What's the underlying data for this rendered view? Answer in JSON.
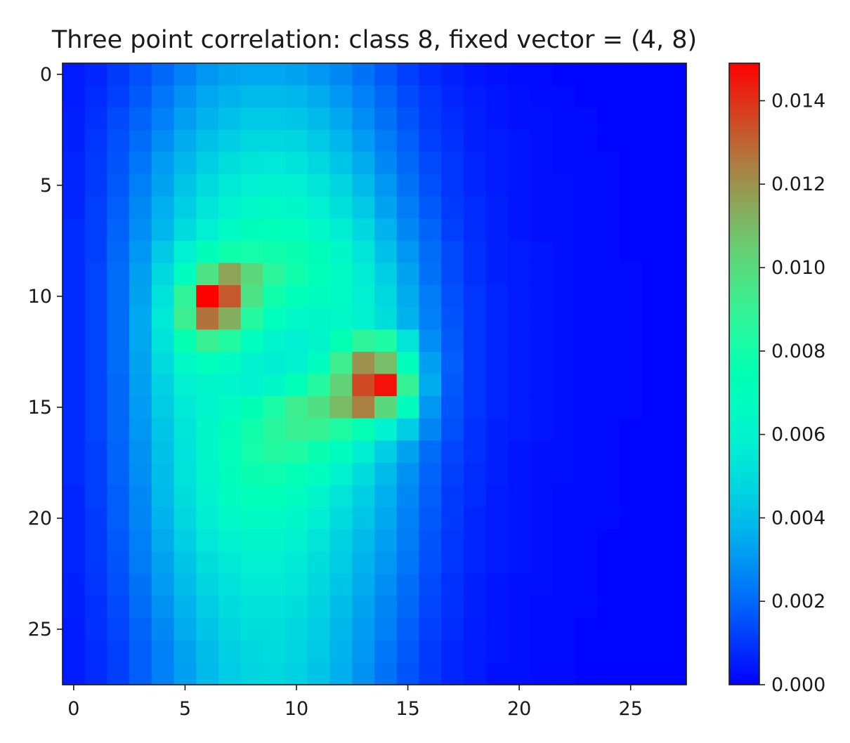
{
  "chart_data": {
    "type": "heatmap",
    "title": "Three point correlation: class 8, fixed vector = (4, 8)",
    "xlabel": "",
    "ylabel": "",
    "colormap": "rainbow",
    "grid_size": [
      28,
      28
    ],
    "x_range": [
      -0.5,
      27.5
    ],
    "y_range": [
      27.5,
      -0.5
    ],
    "x_ticks": [
      "0",
      "5",
      "10",
      "15",
      "20",
      "25"
    ],
    "y_ticks": [
      "0",
      "5",
      "10",
      "15",
      "20",
      "25"
    ],
    "colorbar": {
      "range": [
        0.0,
        0.0149
      ],
      "ticks": [
        "0.000",
        "0.002",
        "0.004",
        "0.006",
        "0.008",
        "0.010",
        "0.012",
        "0.014"
      ]
    },
    "values": [
      [
        0.0005,
        0.0007,
        0.0011,
        0.0015,
        0.002,
        0.0025,
        0.003,
        0.0033,
        0.0034,
        0.0034,
        0.0033,
        0.003,
        0.0027,
        0.0022,
        0.0017,
        0.0012,
        0.0008,
        0.0006,
        0.0004,
        0.0003,
        0.0002,
        0.0002,
        0.0001,
        0.0001,
        0.0001,
        0.0001,
        0.0001,
        0.0001
      ],
      [
        0.0005,
        0.0008,
        0.0012,
        0.0017,
        0.0023,
        0.0029,
        0.0034,
        0.0037,
        0.0039,
        0.0039,
        0.0038,
        0.0035,
        0.003,
        0.0025,
        0.002,
        0.0014,
        0.001,
        0.0007,
        0.0005,
        0.0004,
        0.0003,
        0.0002,
        0.0002,
        0.0001,
        0.0001,
        0.0001,
        0.0001,
        0.0001
      ],
      [
        0.0006,
        0.0009,
        0.0014,
        0.0019,
        0.0025,
        0.0032,
        0.0037,
        0.0041,
        0.0043,
        0.0043,
        0.0042,
        0.0039,
        0.0034,
        0.0028,
        0.0022,
        0.0016,
        0.0011,
        0.0008,
        0.0006,
        0.0004,
        0.0003,
        0.0003,
        0.0002,
        0.0002,
        0.0001,
        0.0001,
        0.0001,
        0.0001
      ],
      [
        0.0006,
        0.001,
        0.0015,
        0.0021,
        0.0028,
        0.0035,
        0.0041,
        0.0045,
        0.0048,
        0.0048,
        0.0047,
        0.0043,
        0.0038,
        0.0031,
        0.0024,
        0.0018,
        0.0012,
        0.0009,
        0.0006,
        0.0005,
        0.0004,
        0.0003,
        0.0002,
        0.0002,
        0.0001,
        0.0001,
        0.0001,
        0.0001
      ],
      [
        0.0007,
        0.0011,
        0.0016,
        0.0023,
        0.0031,
        0.0038,
        0.0045,
        0.005,
        0.0053,
        0.0054,
        0.0052,
        0.0048,
        0.0042,
        0.0035,
        0.0027,
        0.002,
        0.0014,
        0.001,
        0.0007,
        0.0005,
        0.0004,
        0.0003,
        0.0002,
        0.0002,
        0.0002,
        0.0001,
        0.0001,
        0.0001
      ],
      [
        0.0007,
        0.0011,
        0.0017,
        0.0025,
        0.0033,
        0.0042,
        0.0049,
        0.0055,
        0.0058,
        0.0059,
        0.0058,
        0.0053,
        0.0047,
        0.0039,
        0.003,
        0.0022,
        0.0015,
        0.001,
        0.0007,
        0.0005,
        0.0004,
        0.0003,
        0.0003,
        0.0002,
        0.0002,
        0.0001,
        0.0001,
        0.0001
      ],
      [
        0.0007,
        0.0012,
        0.0018,
        0.0027,
        0.0036,
        0.0045,
        0.0053,
        0.006,
        0.0064,
        0.0065,
        0.0063,
        0.0058,
        0.0051,
        0.0043,
        0.0033,
        0.0024,
        0.0017,
        0.0011,
        0.0008,
        0.0006,
        0.0004,
        0.0003,
        0.0003,
        0.0002,
        0.0002,
        0.0001,
        0.0001,
        0.0001
      ],
      [
        0.0008,
        0.0012,
        0.0019,
        0.0028,
        0.0038,
        0.0049,
        0.0058,
        0.0066,
        0.0071,
        0.0072,
        0.007,
        0.0064,
        0.0057,
        0.0048,
        0.0037,
        0.0027,
        0.0019,
        0.0012,
        0.0008,
        0.0006,
        0.0004,
        0.0003,
        0.0003,
        0.0002,
        0.0002,
        0.0001,
        0.0001,
        0.0001
      ],
      [
        0.0008,
        0.0012,
        0.002,
        0.003,
        0.0043,
        0.0058,
        0.0071,
        0.0079,
        0.008,
        0.0079,
        0.0077,
        0.0071,
        0.0063,
        0.0053,
        0.0041,
        0.003,
        0.0021,
        0.0014,
        0.0009,
        0.0006,
        0.0005,
        0.0004,
        0.0003,
        0.0002,
        0.0002,
        0.0001,
        0.0001,
        0.0001
      ],
      [
        0.0008,
        0.0013,
        0.0021,
        0.0032,
        0.0048,
        0.0068,
        0.0097,
        0.0116,
        0.0101,
        0.0087,
        0.0079,
        0.0073,
        0.0066,
        0.0056,
        0.0045,
        0.0033,
        0.0022,
        0.0014,
        0.0009,
        0.0006,
        0.0005,
        0.0004,
        0.0003,
        0.0002,
        0.0002,
        0.0002,
        0.0001,
        0.0001
      ],
      [
        0.0008,
        0.0013,
        0.0021,
        0.0033,
        0.0052,
        0.0088,
        0.0149,
        0.0132,
        0.0097,
        0.0079,
        0.0072,
        0.0068,
        0.0065,
        0.0058,
        0.0048,
        0.0035,
        0.0024,
        0.0015,
        0.001,
        0.0007,
        0.0005,
        0.0004,
        0.0003,
        0.0002,
        0.0002,
        0.0002,
        0.0001,
        0.0001
      ],
      [
        0.0008,
        0.0013,
        0.0021,
        0.0034,
        0.0054,
        0.0092,
        0.0127,
        0.0113,
        0.0085,
        0.007,
        0.0064,
        0.0063,
        0.0064,
        0.006,
        0.005,
        0.0037,
        0.0025,
        0.0016,
        0.001,
        0.0007,
        0.0005,
        0.0004,
        0.0003,
        0.0002,
        0.0002,
        0.0002,
        0.0001,
        0.0001
      ],
      [
        0.0008,
        0.0013,
        0.0021,
        0.0034,
        0.0052,
        0.0076,
        0.0091,
        0.0084,
        0.007,
        0.0061,
        0.0058,
        0.0062,
        0.0075,
        0.0088,
        0.0083,
        0.0053,
        0.0028,
        0.0017,
        0.001,
        0.0007,
        0.0005,
        0.0004,
        0.0003,
        0.0002,
        0.0002,
        0.0002,
        0.0001,
        0.0001
      ],
      [
        0.0008,
        0.0013,
        0.0021,
        0.0033,
        0.0049,
        0.0064,
        0.007,
        0.0067,
        0.006,
        0.0057,
        0.0059,
        0.0068,
        0.0093,
        0.012,
        0.0109,
        0.0071,
        0.0032,
        0.0018,
        0.001,
        0.0007,
        0.0005,
        0.0004,
        0.0003,
        0.0002,
        0.0002,
        0.0002,
        0.0001,
        0.0001
      ],
      [
        0.0008,
        0.0013,
        0.002,
        0.0032,
        0.0046,
        0.0058,
        0.0062,
        0.0061,
        0.006,
        0.0063,
        0.0073,
        0.0085,
        0.0103,
        0.0135,
        0.0146,
        0.009,
        0.0035,
        0.0017,
        0.001,
        0.0007,
        0.0005,
        0.0004,
        0.0003,
        0.0002,
        0.0002,
        0.0002,
        0.0001,
        0.0001
      ],
      [
        0.0008,
        0.0013,
        0.002,
        0.0031,
        0.0044,
        0.0055,
        0.0061,
        0.0067,
        0.0074,
        0.0082,
        0.0092,
        0.0098,
        0.011,
        0.0124,
        0.0101,
        0.0069,
        0.003,
        0.0016,
        0.001,
        0.0007,
        0.0005,
        0.0004,
        0.0003,
        0.0002,
        0.0002,
        0.0002,
        0.0001,
        0.0001
      ],
      [
        0.0008,
        0.0013,
        0.002,
        0.003,
        0.0042,
        0.0053,
        0.0063,
        0.0071,
        0.0079,
        0.0086,
        0.0091,
        0.009,
        0.0083,
        0.0075,
        0.006,
        0.0044,
        0.0026,
        0.0015,
        0.0009,
        0.0006,
        0.0005,
        0.0004,
        0.0003,
        0.0002,
        0.0002,
        0.0001,
        0.0001,
        0.0001
      ],
      [
        0.0008,
        0.0012,
        0.0019,
        0.0029,
        0.0041,
        0.0052,
        0.0063,
        0.0072,
        0.008,
        0.0084,
        0.0083,
        0.0077,
        0.0068,
        0.0057,
        0.0045,
        0.0033,
        0.0021,
        0.0013,
        0.0009,
        0.0006,
        0.0004,
        0.0003,
        0.0003,
        0.0002,
        0.0002,
        0.0001,
        0.0001,
        0.0001
      ],
      [
        0.0008,
        0.0012,
        0.0019,
        0.0028,
        0.004,
        0.0052,
        0.0062,
        0.0071,
        0.0077,
        0.0078,
        0.0075,
        0.0068,
        0.0059,
        0.0049,
        0.0039,
        0.0029,
        0.0019,
        0.0012,
        0.0008,
        0.0006,
        0.0004,
        0.0003,
        0.0003,
        0.0002,
        0.0002,
        0.0001,
        0.0001,
        0.0001
      ],
      [
        0.0007,
        0.0012,
        0.0018,
        0.0027,
        0.0039,
        0.005,
        0.006,
        0.0068,
        0.0072,
        0.0072,
        0.0068,
        0.0062,
        0.0053,
        0.0045,
        0.0036,
        0.0027,
        0.0018,
        0.0011,
        0.0008,
        0.0005,
        0.0004,
        0.0003,
        0.0002,
        0.0002,
        0.0002,
        0.0001,
        0.0001,
        0.0001
      ],
      [
        0.0007,
        0.0011,
        0.0018,
        0.0026,
        0.0037,
        0.0048,
        0.0057,
        0.0064,
        0.0067,
        0.0066,
        0.0063,
        0.0057,
        0.0049,
        0.0042,
        0.0034,
        0.0025,
        0.0017,
        0.0011,
        0.0007,
        0.0005,
        0.0004,
        0.0003,
        0.0002,
        0.0002,
        0.0002,
        0.0001,
        0.0001,
        0.0001
      ],
      [
        0.0007,
        0.0011,
        0.0017,
        0.0025,
        0.0035,
        0.0045,
        0.0054,
        0.006,
        0.0062,
        0.0062,
        0.0059,
        0.0053,
        0.0046,
        0.0039,
        0.0032,
        0.0024,
        0.0016,
        0.001,
        0.0007,
        0.0005,
        0.0004,
        0.0003,
        0.0002,
        0.0002,
        0.0001,
        0.0001,
        0.0001,
        0.0001
      ],
      [
        0.0007,
        0.0011,
        0.0016,
        0.0024,
        0.0033,
        0.0042,
        0.005,
        0.0055,
        0.0058,
        0.0058,
        0.0055,
        0.005,
        0.0044,
        0.0037,
        0.003,
        0.0023,
        0.0015,
        0.001,
        0.0007,
        0.0005,
        0.0004,
        0.0003,
        0.0002,
        0.0002,
        0.0001,
        0.0001,
        0.0001,
        0.0001
      ],
      [
        0.0006,
        0.001,
        0.0015,
        0.0022,
        0.0031,
        0.004,
        0.0047,
        0.0052,
        0.0055,
        0.0055,
        0.0053,
        0.0048,
        0.0042,
        0.0035,
        0.0028,
        0.0021,
        0.0014,
        0.0009,
        0.0006,
        0.0004,
        0.0003,
        0.0003,
        0.0002,
        0.0002,
        0.0001,
        0.0001,
        0.0001,
        0.0001
      ],
      [
        0.0006,
        0.0009,
        0.0014,
        0.0021,
        0.0029,
        0.0037,
        0.0044,
        0.0049,
        0.0052,
        0.0052,
        0.005,
        0.0046,
        0.004,
        0.0033,
        0.0026,
        0.002,
        0.0013,
        0.0009,
        0.0006,
        0.0004,
        0.0003,
        0.0002,
        0.0002,
        0.0002,
        0.0001,
        0.0001,
        0.0001,
        0.0001
      ],
      [
        0.0005,
        0.0009,
        0.0013,
        0.0019,
        0.0027,
        0.0035,
        0.0042,
        0.0047,
        0.005,
        0.005,
        0.0048,
        0.0044,
        0.0038,
        0.0031,
        0.0025,
        0.0018,
        0.0012,
        0.0008,
        0.0005,
        0.0004,
        0.0003,
        0.0002,
        0.0002,
        0.0001,
        0.0001,
        0.0001,
        0.0001,
        0.0001
      ],
      [
        0.0005,
        0.0008,
        0.0012,
        0.0018,
        0.0025,
        0.0033,
        0.004,
        0.0045,
        0.0048,
        0.0049,
        0.0047,
        0.0043,
        0.0037,
        0.003,
        0.0023,
        0.0017,
        0.0011,
        0.0007,
        0.0005,
        0.0004,
        0.0003,
        0.0002,
        0.0002,
        0.0001,
        0.0001,
        0.0001,
        0.0001,
        0.0001
      ],
      [
        0.0005,
        0.0008,
        0.0012,
        0.0018,
        0.0025,
        0.0032,
        0.0039,
        0.0044,
        0.0047,
        0.0048,
        0.0046,
        0.0042,
        0.0036,
        0.0029,
        0.0022,
        0.0016,
        0.0011,
        0.0007,
        0.0005,
        0.0003,
        0.0003,
        0.0002,
        0.0002,
        0.0001,
        0.0001,
        0.0001,
        0.0001,
        0.0001
      ]
    ]
  }
}
